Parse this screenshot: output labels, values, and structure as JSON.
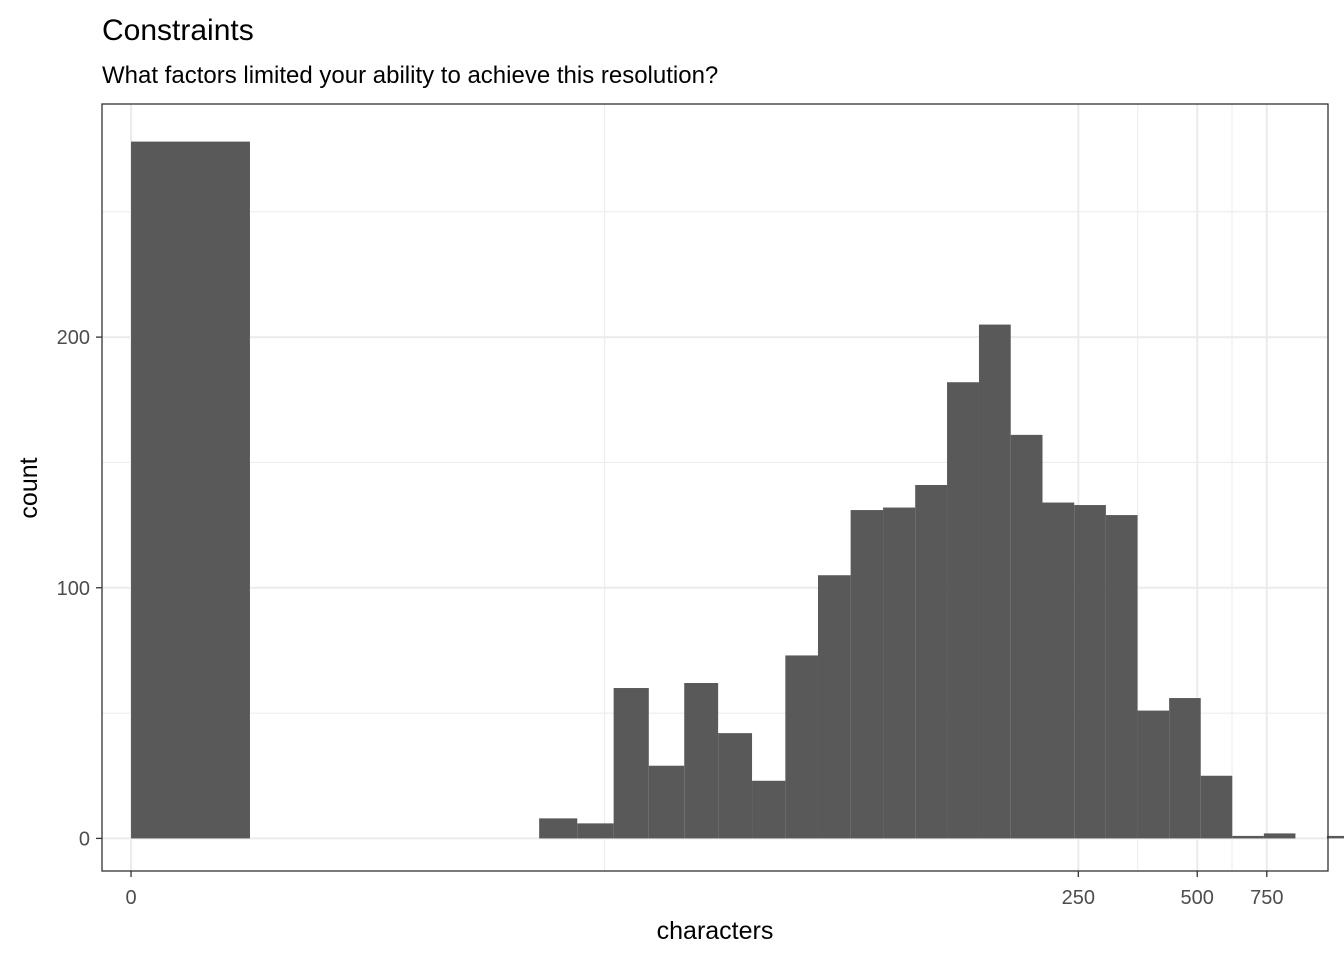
{
  "chart_data": {
    "type": "bar",
    "title": "Constraints",
    "subtitle": "What factors limited your ability to achieve this resolution?",
    "xlabel": "characters",
    "ylabel": "count",
    "x_scale": "pseudo-log",
    "ylim": [
      -13,
      293
    ],
    "x_ticks": [
      {
        "value": 0,
        "label": "0"
      },
      {
        "value": 250,
        "label": "250"
      },
      {
        "value": 500,
        "label": "500"
      },
      {
        "value": 750,
        "label": "750"
      }
    ],
    "y_ticks": [
      {
        "value": 0,
        "label": "0"
      },
      {
        "value": 100,
        "label": "100"
      },
      {
        "value": 200,
        "label": "200"
      }
    ],
    "y_minor_gridlines": [
      50,
      150,
      250
    ],
    "grid": true,
    "bar_color": "#595959",
    "grid_color": "#ebebeb",
    "bins": [
      {
        "start": 0,
        "end": 1.5,
        "count": 278
      },
      {
        "start": 10.7,
        "end": 13.4,
        "count": 8
      },
      {
        "start": 13.4,
        "end": 16.6,
        "count": 6
      },
      {
        "start": 16.6,
        "end": 20.4,
        "count": 60
      },
      {
        "start": 20.4,
        "end": 25.1,
        "count": 29
      },
      {
        "start": 25.1,
        "end": 30.6,
        "count": 62
      },
      {
        "start": 30.6,
        "end": 37.3,
        "count": 42
      },
      {
        "start": 37.3,
        "end": 45.3,
        "count": 23
      },
      {
        "start": 45.3,
        "end": 54.8,
        "count": 73
      },
      {
        "start": 54.8,
        "end": 66.3,
        "count": 105
      },
      {
        "start": 66.3,
        "end": 80.1,
        "count": 131
      },
      {
        "start": 80.1,
        "end": 96.6,
        "count": 132
      },
      {
        "start": 96.6,
        "end": 116.3,
        "count": 141
      },
      {
        "start": 116.3,
        "end": 140.1,
        "count": 182
      },
      {
        "start": 140.1,
        "end": 168.6,
        "count": 205
      },
      {
        "start": 168.6,
        "end": 202.9,
        "count": 161
      },
      {
        "start": 202.9,
        "end": 244.1,
        "count": 134
      },
      {
        "start": 244.1,
        "end": 293.6,
        "count": 133
      },
      {
        "start": 293.6,
        "end": 353.1,
        "count": 129
      },
      {
        "start": 353.1,
        "end": 424.5,
        "count": 51
      },
      {
        "start": 424.5,
        "end": 510.3,
        "count": 56
      },
      {
        "start": 510.3,
        "end": 613.4,
        "count": 25
      },
      {
        "start": 613.4,
        "end": 737.3,
        "count": 1
      },
      {
        "start": 737.3,
        "end": 886.2,
        "count": 2
      },
      {
        "start": 886.2,
        "end": 1065.0,
        "count": 0
      },
      {
        "start": 1065.0,
        "end": 1280.0,
        "count": 1
      }
    ]
  }
}
